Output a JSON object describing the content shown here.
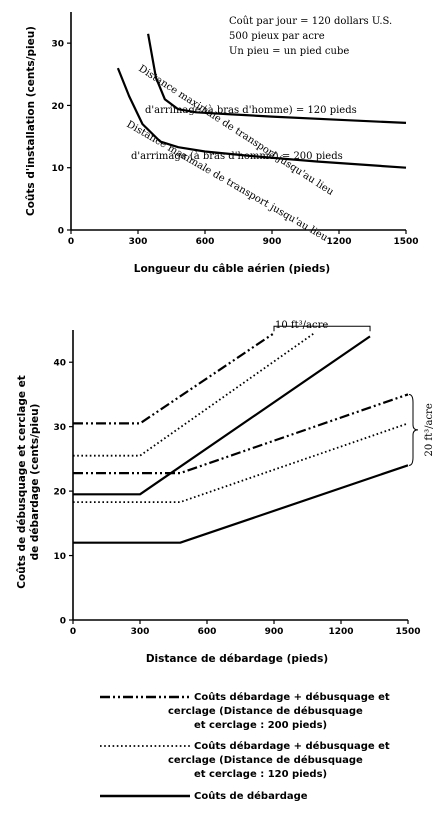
{
  "chart_data": [
    {
      "type": "line",
      "xlabel": "Longueur du câble aérien (pieds)",
      "ylabel": "Coûts d'installation (cents/pieu)",
      "xlim": [
        0,
        1500
      ],
      "ylim": [
        0,
        35
      ],
      "xticks": [
        "0",
        "300",
        "600",
        "900",
        "1200",
        "1500"
      ],
      "yticks": [
        "0",
        "10",
        "20",
        "30"
      ],
      "grid": false,
      "annotations": [
        "Coût par jour = 120 dollars U.S.",
        "500 pieux par acre",
        "Un pieu = un pied cube"
      ],
      "series": [
        {
          "name": "Distance maximale de transport jusqu'au lieu d'arrimage (à bras d'homme) = 120 pieds",
          "label_lines": [
            "Distance maximale de transport jusqu'au lieu",
            "d'arrimage (à bras d'homme) = 120 pieds"
          ],
          "x": [
            345,
            380,
            420,
            480,
            560,
            700,
            900,
            1200,
            1500
          ],
          "y": [
            31.5,
            24.5,
            21.0,
            19.4,
            18.9,
            18.6,
            18.2,
            17.7,
            17.2
          ]
        },
        {
          "name": "Distance maximale de transport jusqu'au lieu d'arrimage (à bras d'homme) = 200 pieds",
          "label_lines": [
            "Distance maximale de transport jusqu'au lieu",
            "d'arrimage (à bras d'homme) = 200 pieds"
          ],
          "x": [
            210,
            260,
            320,
            400,
            480,
            600,
            800,
            1100,
            1500
          ],
          "y": [
            26.0,
            21.5,
            17.0,
            14.2,
            13.3,
            12.6,
            11.9,
            11.0,
            10.0
          ]
        }
      ]
    },
    {
      "type": "line",
      "xlabel": "Distance de débardage (pieds)",
      "ylabel_lines": [
        "Coûts de débusquage et cerclage et",
        "de débardage (cents/pieu)"
      ],
      "xlim": [
        0,
        1500
      ],
      "ylim": [
        0,
        45
      ],
      "xticks": [
        "0",
        "300",
        "600",
        "900",
        "1200",
        "1500"
      ],
      "yticks": [
        "0",
        "10",
        "20",
        "30",
        "40"
      ],
      "grid": false,
      "bracket_top_label": "10 ft³/acre",
      "bracket_right_label": "20 ft³/acre",
      "series": [
        {
          "group": "10 ft³/acre",
          "style": "dashdot",
          "x": [
            0,
            300,
            900
          ],
          "y": [
            30.5,
            30.5,
            44.5
          ]
        },
        {
          "group": "10 ft³/acre",
          "style": "dotted",
          "x": [
            0,
            300,
            1080
          ],
          "y": [
            25.5,
            25.5,
            44.5
          ]
        },
        {
          "group": "10 ft³/acre",
          "style": "solid",
          "x": [
            0,
            300,
            1330
          ],
          "y": [
            19.5,
            19.5,
            44.0
          ]
        },
        {
          "group": "20 ft³/acre",
          "style": "dashdot",
          "x": [
            0,
            480,
            1500
          ],
          "y": [
            22.8,
            22.8,
            35.0
          ]
        },
        {
          "group": "20 ft³/acre",
          "style": "dotted",
          "x": [
            0,
            480,
            1500
          ],
          "y": [
            18.3,
            18.3,
            30.5
          ]
        },
        {
          "group": "20 ft³/acre",
          "style": "solid",
          "x": [
            0,
            480,
            1500
          ],
          "y": [
            12.0,
            12.0,
            24.0
          ]
        }
      ],
      "legend": [
        {
          "style": "dashdot",
          "lines": [
            "Coûts débardage + débusquage et",
            "cerclage (Distance de débusquage",
            "et cerclage : 200 pieds)"
          ]
        },
        {
          "style": "dotted",
          "lines": [
            "Coûts débardage + débusquage et",
            "cerclage (Distance de débusquage",
            "et cerclage : 120 pieds)"
          ]
        },
        {
          "style": "solid",
          "lines": [
            "Coûts de débardage"
          ]
        }
      ]
    }
  ]
}
